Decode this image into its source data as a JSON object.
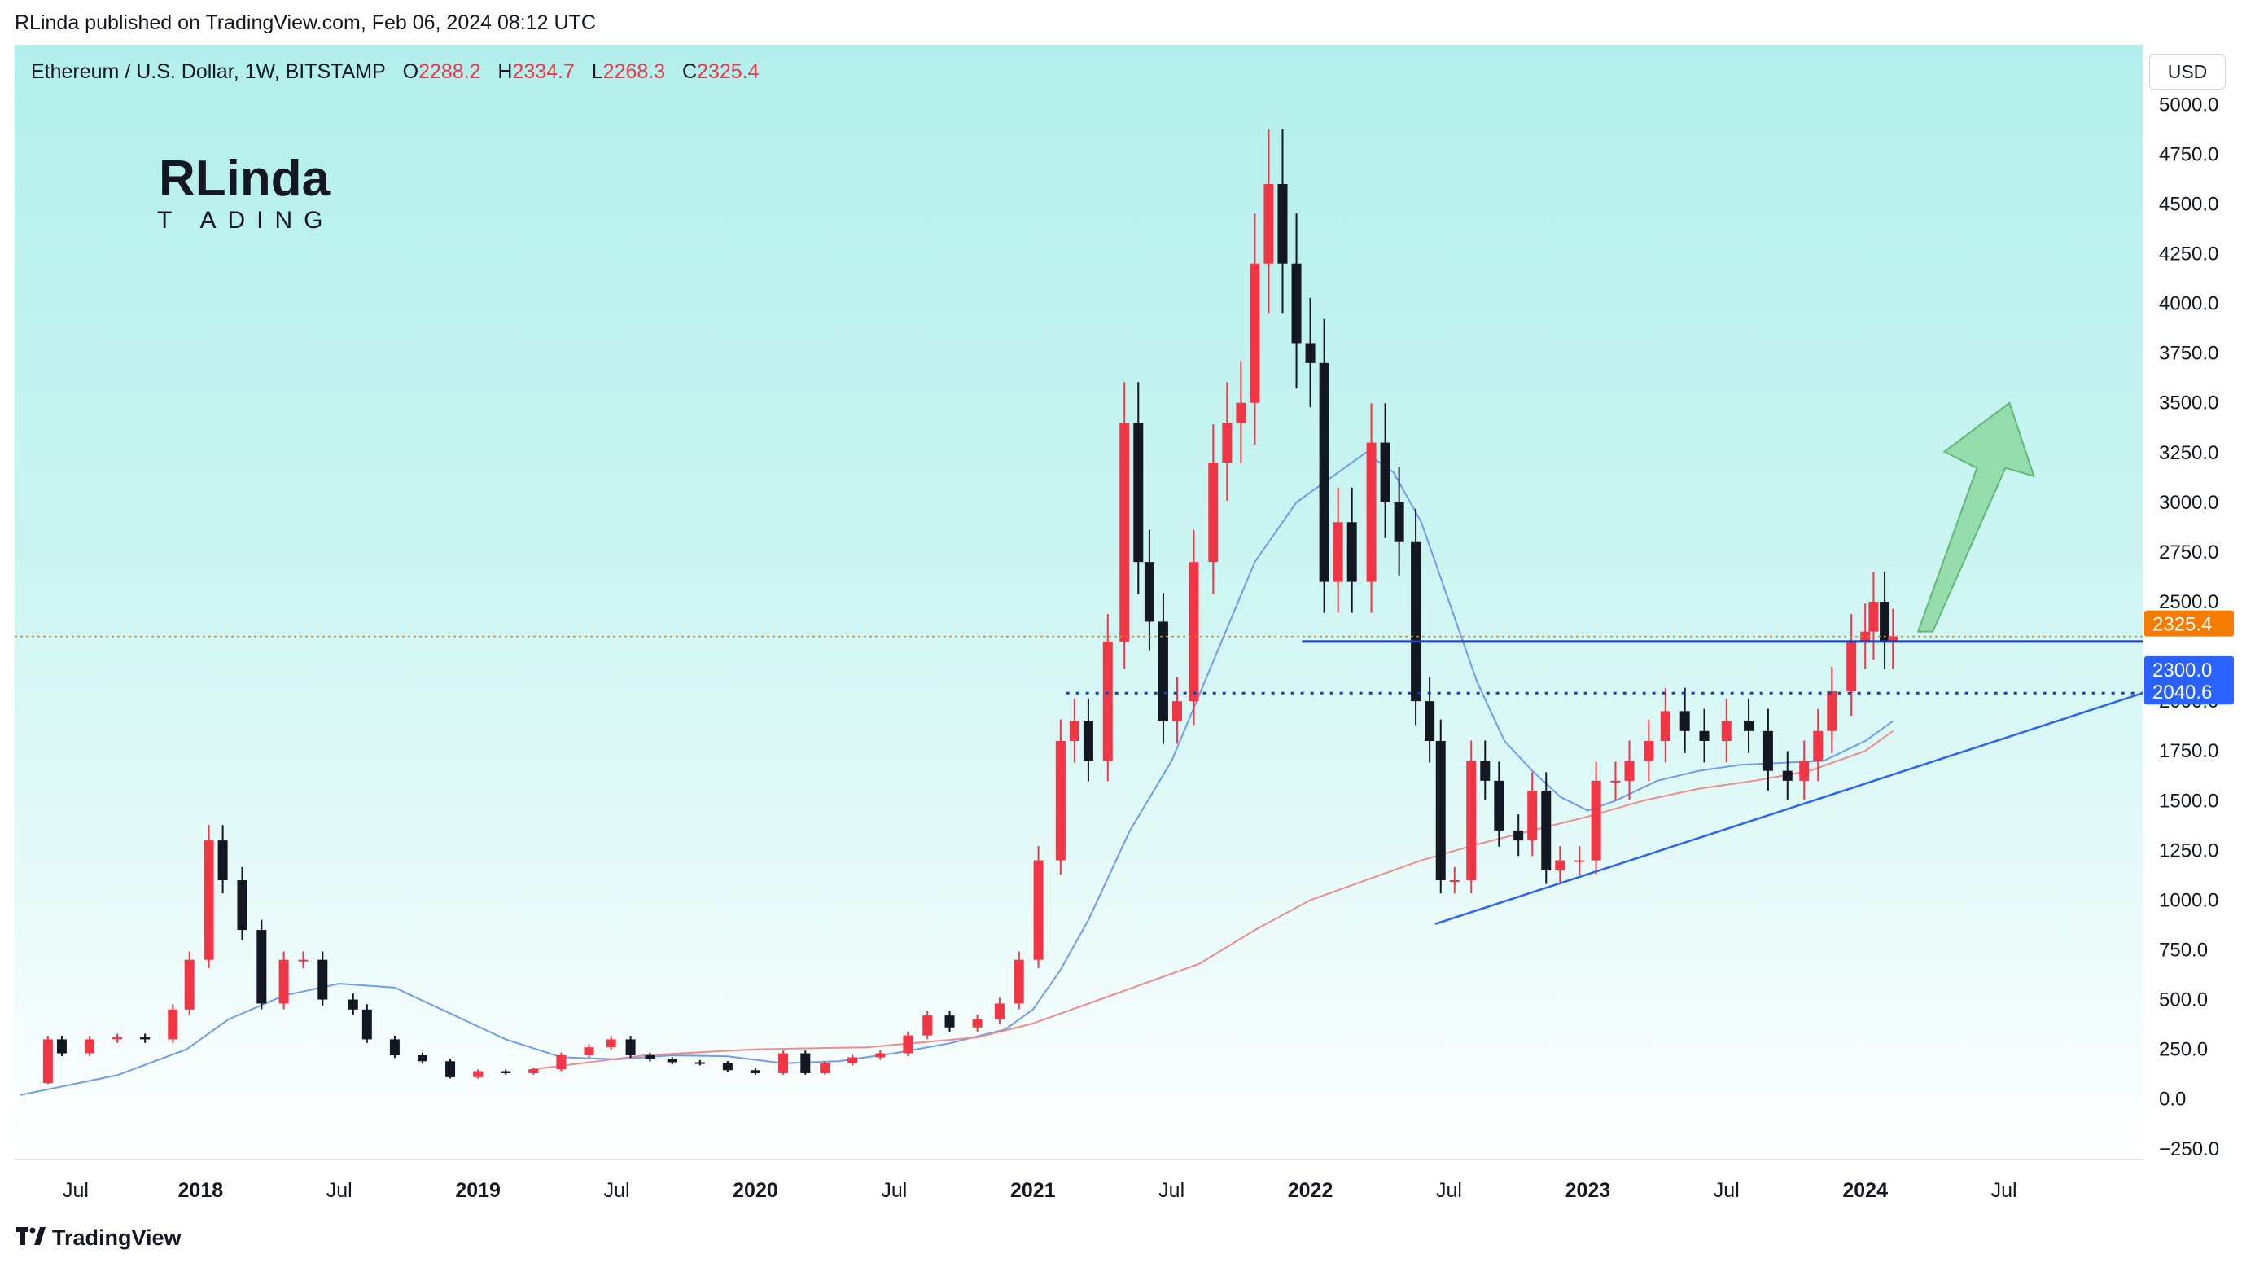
{
  "publisher_line": "RLinda published on TradingView.com, Feb 06, 2024 08:12 UTC",
  "legend": {
    "symbol": "Ethereum / U.S. Dollar, 1W, BITSTAMP",
    "o_label": "O",
    "o_value": "2288.2",
    "h_label": "H",
    "h_value": "2334.7",
    "l_label": "L",
    "l_value": "2268.3",
    "c_label": "C",
    "c_value": "2325.4"
  },
  "logo": {
    "line1": "RLinda",
    "line2": "T ADING"
  },
  "currency": "USD",
  "footer": {
    "brand": "TradingView",
    "icon": "tradingview-logo-icon"
  },
  "colors": {
    "up": "#f23645",
    "down": "#131722",
    "price_tag": "#f57c00",
    "level_tag": "#2962ff",
    "ma_fast": "#6f9cf0",
    "ma_slow": "#f08c8c",
    "arrow": "#7fd18f"
  },
  "chart_data": {
    "type": "candlestick",
    "symbol": "Ethereum / U.S. Dollar",
    "timeframe": "1W",
    "exchange": "BITSTAMP",
    "y_ticks": [
      "5000.0",
      "4750.0",
      "4500.0",
      "4250.0",
      "4000.0",
      "3750.0",
      "3500.0",
      "3250.0",
      "3000.0",
      "2750.0",
      "2500.0",
      "2000.0",
      "1750.0",
      "1500.0",
      "1250.0",
      "1000.0",
      "750.0",
      "500.0",
      "250.0",
      "0.0",
      "−250.0"
    ],
    "ylim": [
      -300,
      5300
    ],
    "x_ticks": [
      "Jul",
      "2018",
      "Jul",
      "2019",
      "Jul",
      "2020",
      "Jul",
      "2021",
      "Jul",
      "2022",
      "Jul",
      "2023",
      "Jul",
      "2024",
      "Jul"
    ],
    "xlim": [
      2017.33,
      2025.0
    ],
    "price_labels": [
      {
        "label": "2325.4",
        "value": 2325.4,
        "kind": "last_price"
      },
      {
        "label": "2300.0",
        "value": 2300.0,
        "kind": "resistance"
      },
      {
        "label": "2040.6",
        "value": 2040.6,
        "kind": "support"
      }
    ],
    "levels": [
      {
        "name": "resistance",
        "value": 2300.0,
        "style": "solid",
        "x_start": 2021.97
      },
      {
        "name": "support",
        "value": 2040.6,
        "style": "dotted",
        "x_start": 2021.12
      }
    ],
    "trendline": {
      "points": [
        [
          2022.45,
          880
        ],
        [
          2025.0,
          2040.6
        ]
      ]
    },
    "projection_arrow": {
      "from": [
        2024.22,
        2350
      ],
      "to": [
        2024.52,
        3500
      ]
    },
    "price_series": [
      [
        2017.35,
        80
      ],
      [
        2017.45,
        300
      ],
      [
        2017.5,
        230
      ],
      [
        2017.6,
        300
      ],
      [
        2017.7,
        310
      ],
      [
        2017.8,
        300
      ],
      [
        2017.9,
        450
      ],
      [
        2017.96,
        700
      ],
      [
        2018.03,
        1300
      ],
      [
        2018.08,
        1100
      ],
      [
        2018.15,
        850
      ],
      [
        2018.22,
        480
      ],
      [
        2018.3,
        700
      ],
      [
        2018.37,
        700
      ],
      [
        2018.44,
        500
      ],
      [
        2018.55,
        450
      ],
      [
        2018.6,
        300
      ],
      [
        2018.7,
        220
      ],
      [
        2018.8,
        190
      ],
      [
        2018.9,
        110
      ],
      [
        2019.0,
        140
      ],
      [
        2019.1,
        130
      ],
      [
        2019.2,
        150
      ],
      [
        2019.3,
        220
      ],
      [
        2019.4,
        260
      ],
      [
        2019.48,
        300
      ],
      [
        2019.55,
        220
      ],
      [
        2019.62,
        200
      ],
      [
        2019.7,
        185
      ],
      [
        2019.8,
        180
      ],
      [
        2019.9,
        145
      ],
      [
        2020.0,
        130
      ],
      [
        2020.1,
        230
      ],
      [
        2020.18,
        130
      ],
      [
        2020.25,
        180
      ],
      [
        2020.35,
        210
      ],
      [
        2020.45,
        230
      ],
      [
        2020.55,
        320
      ],
      [
        2020.62,
        420
      ],
      [
        2020.7,
        360
      ],
      [
        2020.8,
        400
      ],
      [
        2020.88,
        480
      ],
      [
        2020.95,
        700
      ],
      [
        2021.02,
        1200
      ],
      [
        2021.1,
        1800
      ],
      [
        2021.15,
        1900
      ],
      [
        2021.2,
        1700
      ],
      [
        2021.27,
        2300
      ],
      [
        2021.33,
        3400
      ],
      [
        2021.38,
        2700
      ],
      [
        2021.42,
        2400
      ],
      [
        2021.47,
        1900
      ],
      [
        2021.52,
        2000
      ],
      [
        2021.58,
        2700
      ],
      [
        2021.65,
        3200
      ],
      [
        2021.7,
        3400
      ],
      [
        2021.75,
        3500
      ],
      [
        2021.8,
        4200
      ],
      [
        2021.85,
        4600
      ],
      [
        2021.9,
        4200
      ],
      [
        2021.95,
        3800
      ],
      [
        2022.0,
        3700
      ],
      [
        2022.05,
        2600
      ],
      [
        2022.1,
        2900
      ],
      [
        2022.15,
        2600
      ],
      [
        2022.22,
        3300
      ],
      [
        2022.27,
        3000
      ],
      [
        2022.32,
        2800
      ],
      [
        2022.38,
        2000
      ],
      [
        2022.43,
        1800
      ],
      [
        2022.47,
        1100
      ],
      [
        2022.52,
        1100
      ],
      [
        2022.58,
        1700
      ],
      [
        2022.63,
        1600
      ],
      [
        2022.68,
        1350
      ],
      [
        2022.75,
        1300
      ],
      [
        2022.8,
        1550
      ],
      [
        2022.85,
        1150
      ],
      [
        2022.9,
        1200
      ],
      [
        2022.97,
        1200
      ],
      [
        2023.03,
        1600
      ],
      [
        2023.1,
        1600
      ],
      [
        2023.15,
        1700
      ],
      [
        2023.22,
        1800
      ],
      [
        2023.28,
        1950
      ],
      [
        2023.35,
        1850
      ],
      [
        2023.42,
        1800
      ],
      [
        2023.5,
        1900
      ],
      [
        2023.58,
        1850
      ],
      [
        2023.65,
        1650
      ],
      [
        2023.72,
        1600
      ],
      [
        2023.78,
        1700
      ],
      [
        2023.83,
        1850
      ],
      [
        2023.88,
        2050
      ],
      [
        2023.95,
        2300
      ],
      [
        2024.0,
        2350
      ],
      [
        2024.03,
        2500
      ],
      [
        2024.07,
        2300
      ],
      [
        2024.1,
        2325
      ]
    ],
    "ma_fast": [
      [
        2017.35,
        20
      ],
      [
        2017.7,
        120
      ],
      [
        2017.95,
        250
      ],
      [
        2018.1,
        400
      ],
      [
        2018.3,
        520
      ],
      [
        2018.5,
        580
      ],
      [
        2018.7,
        560
      ],
      [
        2018.9,
        430
      ],
      [
        2019.1,
        300
      ],
      [
        2019.3,
        210
      ],
      [
        2019.5,
        200
      ],
      [
        2019.7,
        220
      ],
      [
        2019.9,
        215
      ],
      [
        2020.1,
        180
      ],
      [
        2020.3,
        190
      ],
      [
        2020.5,
        230
      ],
      [
        2020.7,
        280
      ],
      [
        2020.9,
        350
      ],
      [
        2021.0,
        450
      ],
      [
        2021.1,
        650
      ],
      [
        2021.2,
        900
      ],
      [
        2021.35,
        1350
      ],
      [
        2021.5,
        1700
      ],
      [
        2021.65,
        2200
      ],
      [
        2021.8,
        2700
      ],
      [
        2021.95,
        3000
      ],
      [
        2022.1,
        3150
      ],
      [
        2022.2,
        3250
      ],
      [
        2022.3,
        3150
      ],
      [
        2022.4,
        2900
      ],
      [
        2022.5,
        2500
      ],
      [
        2022.6,
        2100
      ],
      [
        2022.7,
        1800
      ],
      [
        2022.8,
        1650
      ],
      [
        2022.9,
        1520
      ],
      [
        2023.0,
        1450
      ],
      [
        2023.1,
        1500
      ],
      [
        2023.25,
        1600
      ],
      [
        2023.4,
        1650
      ],
      [
        2023.55,
        1680
      ],
      [
        2023.7,
        1690
      ],
      [
        2023.85,
        1700
      ],
      [
        2024.0,
        1800
      ],
      [
        2024.1,
        1900
      ]
    ],
    "ma_slow": [
      [
        2019.2,
        150
      ],
      [
        2019.6,
        220
      ],
      [
        2020.0,
        250
      ],
      [
        2020.4,
        260
      ],
      [
        2020.8,
        310
      ],
      [
        2021.0,
        380
      ],
      [
        2021.2,
        480
      ],
      [
        2021.4,
        580
      ],
      [
        2021.6,
        680
      ],
      [
        2021.8,
        850
      ],
      [
        2022.0,
        1000
      ],
      [
        2022.2,
        1100
      ],
      [
        2022.4,
        1200
      ],
      [
        2022.6,
        1280
      ],
      [
        2022.8,
        1350
      ],
      [
        2023.0,
        1420
      ],
      [
        2023.2,
        1500
      ],
      [
        2023.4,
        1560
      ],
      [
        2023.6,
        1600
      ],
      [
        2023.8,
        1650
      ],
      [
        2024.0,
        1750
      ],
      [
        2024.1,
        1850
      ]
    ]
  }
}
